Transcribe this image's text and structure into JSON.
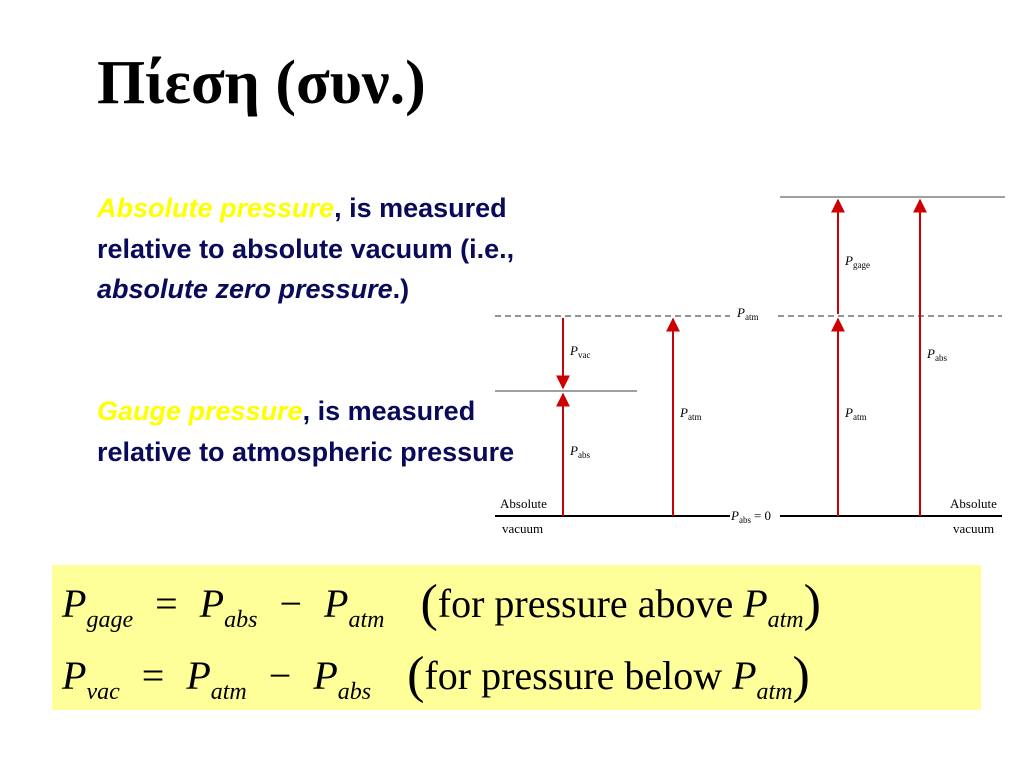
{
  "slide": {
    "title": "Πίεση (συν.)"
  },
  "text": {
    "p1_highlight": "Absolute pressure",
    "p1_rest1": ", is measured relative to absolute vacuum (i.e., ",
    "p1_italic": "absolute zero pressure",
    "p1_rest2": ".)",
    "p2_highlight": "Gauge pressure",
    "p2_rest": ", is measured relative to atmospheric pressure"
  },
  "diagram": {
    "label_pvac": "P",
    "sub_vac": "vac",
    "label_pabs": "P",
    "sub_abs": "abs",
    "label_patm": "P",
    "sub_atm": "atm",
    "label_pgage": "P",
    "sub_gage": "gage",
    "label_pabs_zero_eq": "= 0",
    "absolute_left": "Absolute",
    "vacuum_left": "vacuum",
    "absolute_right": "Absolute",
    "vacuum_right": "vacuum",
    "line_color": "#cc0000"
  },
  "formulas": {
    "f1": {
      "lhs": "P",
      "lhs_sub": "gage",
      "a": "P",
      "a_sub": "abs",
      "b": "P",
      "b_sub": "atm",
      "note": "for pressure above",
      "note_p": "P",
      "note_sub": "atm"
    },
    "f2": {
      "lhs": "P",
      "lhs_sub": "vac",
      "a": "P",
      "a_sub": "atm",
      "b": "P",
      "b_sub": "abs",
      "note": "for pressure below",
      "note_p": "P",
      "note_sub": "atm"
    },
    "box_color": "#ffff99"
  }
}
